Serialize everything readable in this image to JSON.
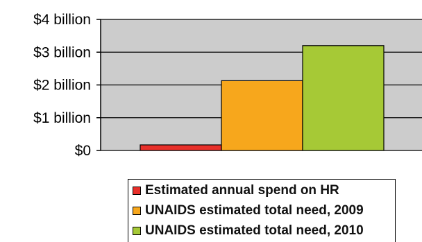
{
  "chart_data": {
    "type": "bar",
    "title": "",
    "xlabel": "",
    "ylabel": "",
    "ylim": [
      0,
      4
    ],
    "yticks": [
      0,
      1,
      2,
      3,
      4
    ],
    "ytick_labels": [
      "$0",
      "$1 billion",
      "$2 billion",
      "$3 billion",
      "$4 billion"
    ],
    "grid": true,
    "legend_position": "bottom",
    "series": [
      {
        "name": "Estimated annual spend on HR",
        "value": 0.17,
        "color": "#e8302a"
      },
      {
        "name": "UNAIDS estimated total need, 2009",
        "value": 2.13,
        "color": "#f7a71c"
      },
      {
        "name": "UNAIDS estimated total need, 2010",
        "value": 3.2,
        "color": "#a6c936"
      }
    ],
    "plot_background": "#cccccc"
  }
}
